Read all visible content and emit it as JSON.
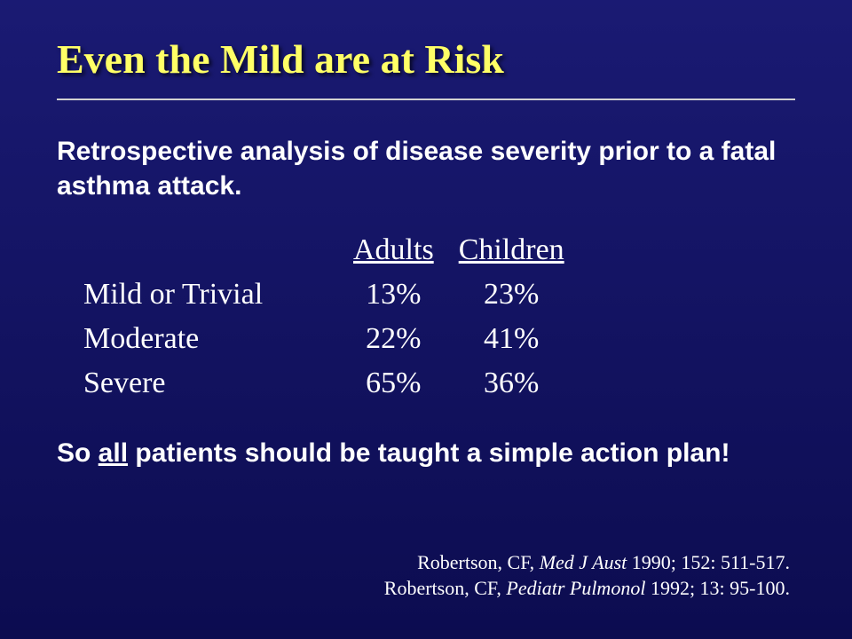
{
  "colors": {
    "bg_top": "#1a1a73",
    "bg_bottom": "#0c0c50",
    "title_color": "#ffff66",
    "text_color": "#ffffff",
    "rule_color": "#d0d0d0"
  },
  "title": "Even the Mild are at Risk",
  "lead": "Retrospective analysis of disease severity prior to a fatal asthma attack.",
  "table": {
    "col1_header": "Adults",
    "col2_header": "Children",
    "rows": [
      {
        "label": "Mild or Trivial",
        "adults": "13%",
        "children": "23%"
      },
      {
        "label": "Moderate",
        "adults": "22%",
        "children": "41%"
      },
      {
        "label": "Severe",
        "adults": "65%",
        "children": "36%"
      }
    ]
  },
  "conclusion_pre": "So ",
  "conclusion_underlined": "all",
  "conclusion_post": " patients should be taught a simple action plan!",
  "refs": {
    "r1_a": "Robertson, CF, ",
    "r1_it": "Med J Aust",
    "r1_b": " 1990; 152: 511-517.",
    "r2_a": "Robertson, CF, ",
    "r2_it": "Pediatr Pulmonol",
    "r2_b": " 1992; 13: 95-100."
  }
}
